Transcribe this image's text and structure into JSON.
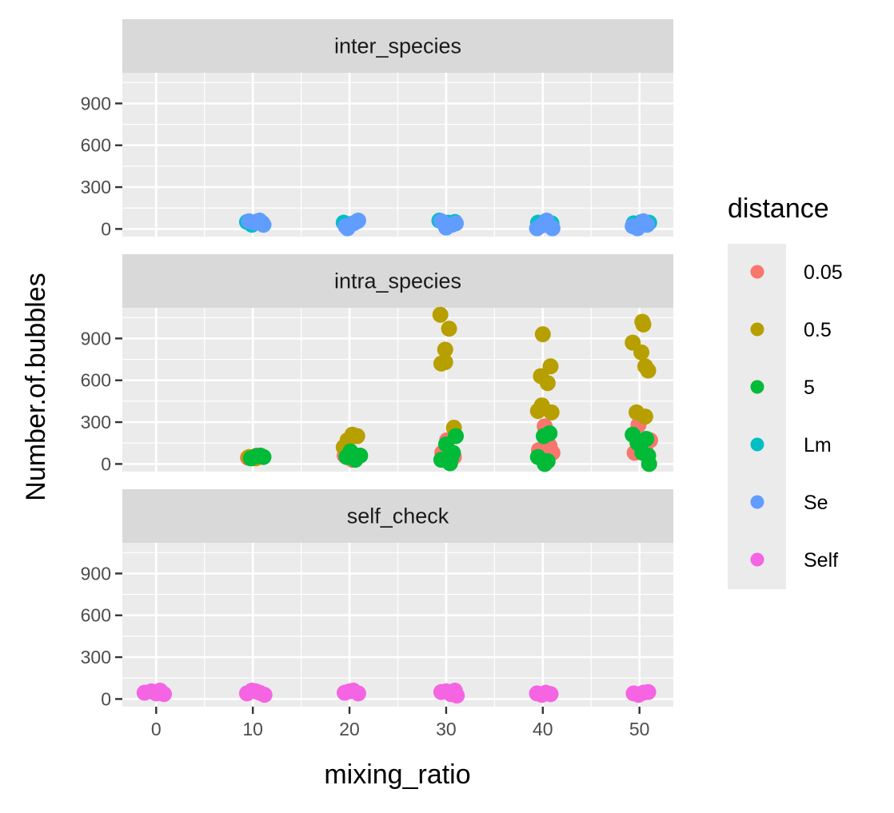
{
  "chart_data": {
    "type": "scatter",
    "xlabel": "mixing_ratio",
    "ylabel": "Number.of.bubbles",
    "x_ticks": [
      0,
      10,
      20,
      30,
      40,
      50
    ],
    "y_ticks": [
      0,
      300,
      600,
      900
    ],
    "xlim": [
      -3.5,
      53.5
    ],
    "ylim": [
      -55,
      1120
    ],
    "grid": true,
    "legend": {
      "title": "distance",
      "position": "right",
      "entries": [
        {
          "label": "0.05",
          "color": "#F8766D"
        },
        {
          "label": "0.5",
          "color": "#B79F00"
        },
        {
          "label": "5",
          "color": "#00BA38"
        },
        {
          "label": "Lm",
          "color": "#00BFC4"
        },
        {
          "label": "Se",
          "color": "#619CFF"
        },
        {
          "label": "Self",
          "color": "#F564E3"
        }
      ]
    },
    "panels": [
      {
        "strip": "inter_species",
        "series": [
          {
            "name": "Lm",
            "points": [
              [
                9.4,
                50
              ],
              [
                9.9,
                30
              ],
              [
                10.5,
                55
              ],
              [
                11.0,
                40
              ],
              [
                19.4,
                45
              ],
              [
                20.1,
                35
              ],
              [
                20.8,
                55
              ],
              [
                29.3,
                60
              ],
              [
                30.2,
                45
              ],
              [
                30.9,
                50
              ],
              [
                39.5,
                45
              ],
              [
                40.3,
                55
              ],
              [
                40.9,
                40
              ],
              [
                49.4,
                40
              ],
              [
                50.2,
                50
              ],
              [
                51.0,
                45
              ]
            ]
          },
          {
            "name": "Se",
            "points": [
              [
                9.6,
                55
              ],
              [
                10.2,
                45
              ],
              [
                10.7,
                60
              ],
              [
                11.1,
                30
              ],
              [
                19.6,
                20
              ],
              [
                20.4,
                40
              ],
              [
                20.9,
                60
              ],
              [
                19.8,
                5
              ],
              [
                29.5,
                55
              ],
              [
                30.0,
                10
              ],
              [
                30.6,
                30
              ],
              [
                31.0,
                40
              ],
              [
                39.4,
                5
              ],
              [
                39.9,
                25
              ],
              [
                40.4,
                60
              ],
              [
                41.0,
                5
              ],
              [
                49.3,
                20
              ],
              [
                49.8,
                5
              ],
              [
                50.4,
                55
              ],
              [
                50.8,
                30
              ]
            ]
          }
        ]
      },
      {
        "strip": "intra_species",
        "series": [
          {
            "name": "0.05",
            "points": [
              [
                9.5,
                45
              ],
              [
                10.4,
                60
              ],
              [
                19.5,
                60
              ],
              [
                20.3,
                30
              ],
              [
                20.8,
                55
              ],
              [
                29.6,
                80
              ],
              [
                30.1,
                170
              ],
              [
                30.8,
                50
              ],
              [
                39.6,
                100
              ],
              [
                40.2,
                270
              ],
              [
                40.7,
                130
              ],
              [
                41.0,
                80
              ],
              [
                49.5,
                80
              ],
              [
                49.9,
                280
              ],
              [
                50.6,
                100
              ],
              [
                51.1,
                170
              ]
            ]
          },
          {
            "name": "0.5",
            "points": [
              [
                9.6,
                50
              ],
              [
                10.3,
                40
              ],
              [
                19.4,
                120
              ],
              [
                19.8,
                170
              ],
              [
                20.3,
                210
              ],
              [
                20.8,
                200
              ],
              [
                29.4,
                1070
              ],
              [
                30.3,
                970
              ],
              [
                29.9,
                820
              ],
              [
                29.5,
                720
              ],
              [
                29.9,
                730
              ],
              [
                30.8,
                260
              ],
              [
                39.5,
                380
              ],
              [
                39.9,
                420
              ],
              [
                40.0,
                930
              ],
              [
                39.8,
                630
              ],
              [
                40.5,
                580
              ],
              [
                40.8,
                700
              ],
              [
                40.9,
                370
              ],
              [
                49.3,
                870
              ],
              [
                50.3,
                1020
              ],
              [
                50.4,
                1000
              ],
              [
                50.2,
                800
              ],
              [
                50.6,
                700
              ],
              [
                50.9,
                670
              ],
              [
                49.7,
                370
              ],
              [
                50.6,
                340
              ]
            ]
          },
          {
            "name": "5",
            "points": [
              [
                9.8,
                40
              ],
              [
                10.3,
                55
              ],
              [
                10.8,
                60
              ],
              [
                11.1,
                50
              ],
              [
                19.7,
                50
              ],
              [
                20.1,
                90
              ],
              [
                20.6,
                30
              ],
              [
                21.1,
                60
              ],
              [
                29.5,
                30
              ],
              [
                30.0,
                140
              ],
              [
                30.4,
                5
              ],
              [
                30.7,
                80
              ],
              [
                31.0,
                200
              ],
              [
                30.5,
                40
              ],
              [
                39.5,
                50
              ],
              [
                40.1,
                200
              ],
              [
                40.5,
                20
              ],
              [
                40.7,
                220
              ],
              [
                40.2,
                0
              ],
              [
                49.3,
                210
              ],
              [
                49.8,
                150
              ],
              [
                50.3,
                80
              ],
              [
                50.7,
                180
              ],
              [
                50.9,
                60
              ],
              [
                51.0,
                0
              ]
            ]
          }
        ]
      },
      {
        "strip": "self_check",
        "series": [
          {
            "name": "Self",
            "points": [
              [
                -1.2,
                45
              ],
              [
                -0.5,
                55
              ],
              [
                0.0,
                40
              ],
              [
                0.4,
                60
              ],
              [
                0.8,
                35
              ],
              [
                9.4,
                40
              ],
              [
                9.9,
                60
              ],
              [
                10.3,
                55
              ],
              [
                10.7,
                45
              ],
              [
                11.2,
                30
              ],
              [
                19.5,
                45
              ],
              [
                20.0,
                55
              ],
              [
                20.4,
                60
              ],
              [
                20.9,
                40
              ],
              [
                29.5,
                50
              ],
              [
                30.0,
                55
              ],
              [
                30.5,
                35
              ],
              [
                30.9,
                60
              ],
              [
                31.1,
                25
              ],
              [
                39.4,
                40
              ],
              [
                39.9,
                30
              ],
              [
                40.3,
                45
              ],
              [
                40.8,
                35
              ],
              [
                49.4,
                40
              ],
              [
                49.9,
                30
              ],
              [
                50.4,
                45
              ],
              [
                50.9,
                50
              ]
            ]
          }
        ]
      }
    ]
  }
}
